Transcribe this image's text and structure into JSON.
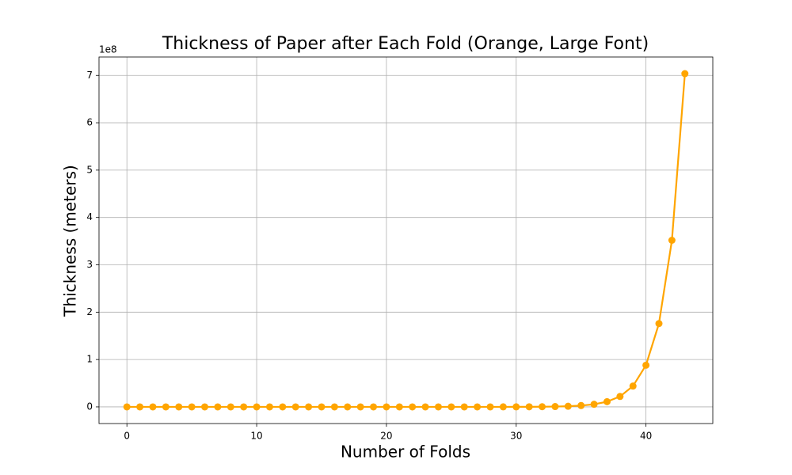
{
  "chart_data": {
    "type": "line",
    "title": "Thickness of Paper after Each Fold (Orange, Large Font)",
    "x_label": "Number of Folds",
    "y_label": "Thickness (meters)",
    "y_offset_label": "1e8",
    "x": [
      0,
      1,
      2,
      3,
      4,
      5,
      6,
      7,
      8,
      9,
      10,
      11,
      12,
      13,
      14,
      15,
      16,
      17,
      18,
      19,
      20,
      21,
      22,
      23,
      24,
      25,
      26,
      27,
      28,
      29,
      30,
      31,
      32,
      33,
      34,
      35,
      36,
      37,
      38,
      39,
      40,
      41,
      42,
      43
    ],
    "series": [
      {
        "color": "#ffa500",
        "marker": "o",
        "values": [
          8e-05,
          0.00016,
          0.00032,
          0.00064,
          0.00128,
          0.00256,
          0.00512,
          0.01024,
          0.02048,
          0.04096,
          0.08192,
          0.16384,
          0.32768,
          0.65536,
          1.31072,
          2.62144,
          5.24288,
          10.48576,
          20.97152,
          41.94304,
          83.88608,
          167.77216,
          335.54432,
          671.08864,
          1342.17728,
          2684.35456,
          5368.70912,
          10737.41824,
          21474.83648,
          42949.67296,
          85899.34592,
          171798.69184,
          343597.38368,
          687194.76736,
          1374389.53472,
          2748779.06944,
          5497558.13888,
          10995116.27776,
          21990232.55552,
          43980465.11104,
          87960930.22208,
          175921860.44416,
          351843720.88832,
          703687441.77664
        ]
      }
    ],
    "xlim": [
      -2.15,
      45.15
    ],
    "ylim": [
      -35184372,
      738871814
    ],
    "xticks": [
      0,
      10,
      20,
      30,
      40
    ],
    "yticks": [
      {
        "value": 0,
        "label": "0"
      },
      {
        "value": 100000000,
        "label": "1"
      },
      {
        "value": 200000000,
        "label": "2"
      },
      {
        "value": 300000000,
        "label": "3"
      },
      {
        "value": 400000000,
        "label": "4"
      },
      {
        "value": 500000000,
        "label": "5"
      },
      {
        "value": 600000000,
        "label": "6"
      },
      {
        "value": 700000000,
        "label": "7"
      }
    ],
    "grid": true
  }
}
